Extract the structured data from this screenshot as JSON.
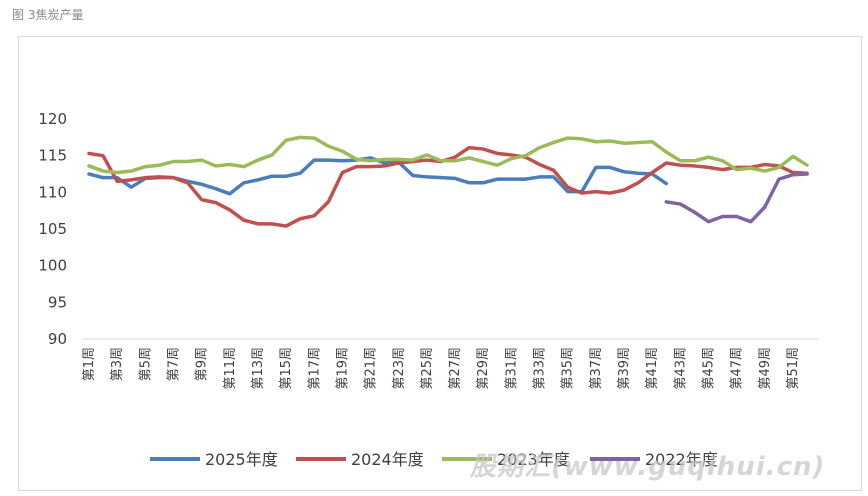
{
  "figure_caption": "图 3焦炭产量",
  "watermark": "股期汇(www.guqihui.cn)",
  "chart_data": {
    "type": "line",
    "title": "",
    "xlabel": "",
    "ylabel": "",
    "ylim": [
      90,
      120
    ],
    "yticks": [
      90,
      95,
      100,
      105,
      110,
      115,
      120
    ],
    "grid": false,
    "legend_position": "bottom",
    "x_tick_labels": [
      "第1周",
      "第3周",
      "第5周",
      "第7周",
      "第9周",
      "第11周",
      "第13周",
      "第15周",
      "第17周",
      "第19周",
      "第21周",
      "第23周",
      "第25周",
      "第27周",
      "第29周",
      "第31周",
      "第33周",
      "第35周",
      "第37周",
      "第39周",
      "第41周",
      "第43周",
      "第45周",
      "第47周",
      "第49周",
      "第51周"
    ],
    "x_tick_weeks": [
      1,
      3,
      5,
      7,
      9,
      11,
      13,
      15,
      17,
      19,
      21,
      23,
      25,
      27,
      29,
      31,
      33,
      35,
      37,
      39,
      41,
      43,
      45,
      47,
      49,
      51
    ],
    "series": [
      {
        "name": "2025年度",
        "color": "#4a7ebb",
        "start_week": 1,
        "values": [
          112.5,
          112.0,
          112.0,
          110.7,
          111.9,
          112.0,
          112.0,
          111.5,
          111.1,
          110.5,
          109.8,
          111.3,
          111.7,
          112.2,
          112.2,
          112.6,
          114.4,
          114.4,
          114.3,
          114.4,
          114.7,
          114.0,
          114.1,
          112.3,
          112.1,
          112.0,
          111.9,
          111.3,
          111.3,
          111.8,
          111.8,
          111.8,
          112.1,
          112.1,
          110.1,
          110.1,
          113.4,
          113.4,
          112.8,
          112.6,
          112.5,
          111.2
        ]
      },
      {
        "name": "2024年度",
        "color": "#c0504d",
        "start_week": 1,
        "values": [
          115.3,
          115.0,
          111.5,
          111.7,
          112.0,
          112.1,
          112.0,
          111.3,
          109.0,
          108.6,
          107.6,
          106.2,
          105.7,
          105.7,
          105.4,
          106.4,
          106.8,
          108.7,
          112.7,
          113.5,
          113.5,
          113.6,
          114.0,
          114.2,
          114.4,
          114.2,
          114.8,
          116.1,
          115.9,
          115.3,
          115.1,
          114.8,
          113.8,
          113.0,
          110.7,
          109.9,
          110.1,
          109.9,
          110.3,
          111.3,
          112.7,
          114.0,
          113.7,
          113.6,
          113.4,
          113.1,
          113.4,
          113.4,
          113.8,
          113.6,
          112.7,
          112.6
        ]
      },
      {
        "name": "2023年度",
        "color": "#9bbb59",
        "start_week": 1,
        "values": [
          113.6,
          112.9,
          112.7,
          112.9,
          113.5,
          113.7,
          114.2,
          114.2,
          114.4,
          113.6,
          113.8,
          113.5,
          114.4,
          115.1,
          117.1,
          117.5,
          117.4,
          116.3,
          115.6,
          114.5,
          114.3,
          114.5,
          114.5,
          114.4,
          115.1,
          114.3,
          114.3,
          114.7,
          114.2,
          113.7,
          114.6,
          115.0,
          116.1,
          116.8,
          117.4,
          117.3,
          116.9,
          117.0,
          116.7,
          116.8,
          116.9,
          115.5,
          114.3,
          114.3,
          114.8,
          114.3,
          113.1,
          113.3,
          112.9,
          113.4,
          114.9,
          113.7
        ]
      },
      {
        "name": "2022年度",
        "color": "#8064a2",
        "start_week": 42,
        "values": [
          108.7,
          108.4,
          107.3,
          106.0,
          106.7,
          106.7,
          106.0,
          108.0,
          111.8,
          112.4,
          112.5
        ]
      }
    ]
  }
}
